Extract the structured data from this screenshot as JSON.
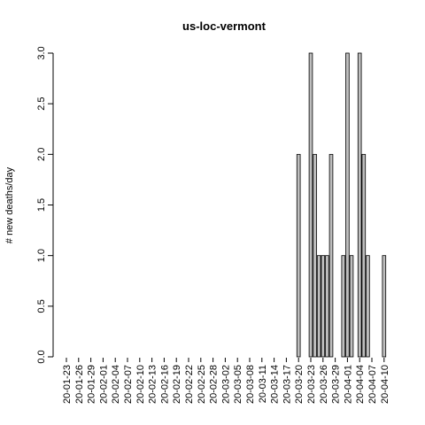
{
  "chart_data": {
    "type": "bar",
    "title": "us-loc-vermont",
    "y_label": "# new deaths/day",
    "categories": [
      "20-01-23",
      null,
      null,
      "20-01-26",
      null,
      null,
      "20-01-29",
      null,
      null,
      "20-02-01",
      null,
      null,
      "20-02-04",
      null,
      null,
      "20-02-07",
      null,
      null,
      "20-02-10",
      null,
      null,
      "20-02-13",
      null,
      null,
      "20-02-16",
      null,
      null,
      "20-02-19",
      null,
      null,
      "20-02-22",
      null,
      null,
      "20-02-25",
      null,
      null,
      "20-02-28",
      null,
      null,
      "20-03-02",
      null,
      null,
      "20-03-05",
      null,
      null,
      "20-03-08",
      null,
      null,
      "20-03-11",
      null,
      null,
      "20-03-14",
      null,
      null,
      "20-03-17",
      null,
      null,
      "20-03-20",
      null,
      null,
      "20-03-23",
      null,
      null,
      "20-03-26",
      null,
      null,
      "20-03-29",
      null,
      null,
      "20-04-01",
      null,
      null,
      "20-04-04",
      null,
      null,
      "20-04-07",
      null,
      null,
      "20-04-10"
    ],
    "values": [
      0,
      0,
      0,
      0,
      0,
      0,
      0,
      0,
      0,
      0,
      0,
      0,
      0,
      0,
      0,
      0,
      0,
      0,
      0,
      0,
      0,
      0,
      0,
      0,
      0,
      0,
      0,
      0,
      0,
      0,
      0,
      0,
      0,
      0,
      0,
      0,
      0,
      0,
      0,
      0,
      0,
      0,
      0,
      0,
      0,
      0,
      0,
      0,
      0,
      0,
      0,
      0,
      0,
      0,
      0,
      0,
      0,
      2,
      0,
      0,
      3,
      2,
      1,
      1,
      1,
      2,
      0,
      0,
      1,
      3,
      1,
      0,
      3,
      2,
      1,
      0,
      0,
      0,
      1
    ],
    "color": "#bebebe",
    "ylim": [
      0,
      3
    ],
    "yticks": [
      {
        "value": 0,
        "label": "0.0"
      },
      {
        "value": 0.5,
        "label": "0.5"
      },
      {
        "value": 1,
        "label": "1.0"
      },
      {
        "value": 1.5,
        "label": "1.5"
      },
      {
        "value": 2,
        "label": "2.0"
      },
      {
        "value": 2.5,
        "label": "2.5"
      },
      {
        "value": 3,
        "label": "3.0"
      }
    ]
  }
}
